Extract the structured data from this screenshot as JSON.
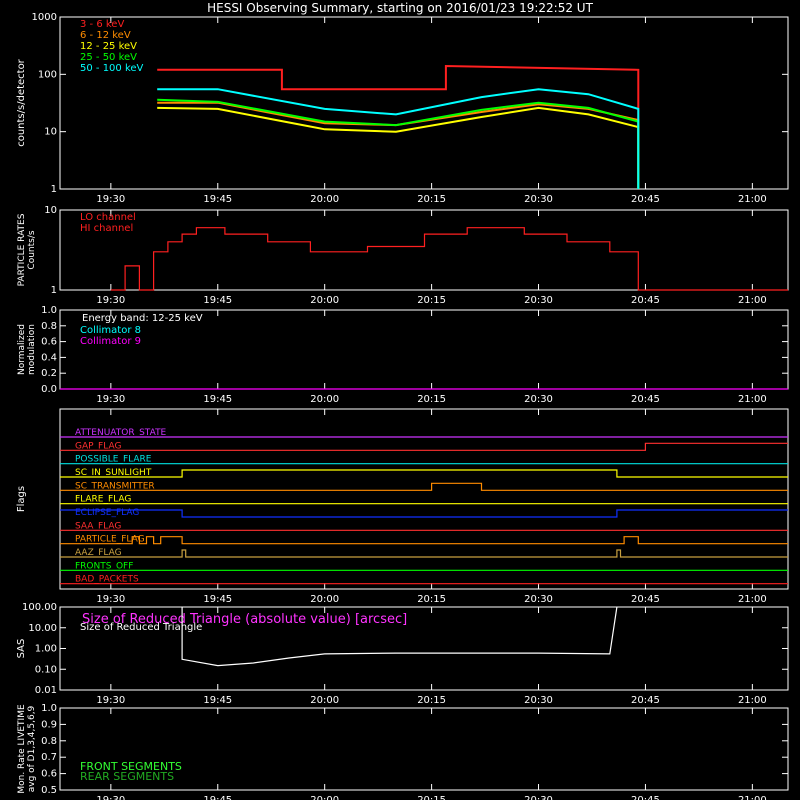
{
  "title": "HESSI Observing Summary, starting on 2016/01/23 19:22:52 UT",
  "time_ticks": [
    "19:30",
    "19:45",
    "20:00",
    "20:15",
    "20:30",
    "20:45",
    "21:00"
  ],
  "chart_data": [
    {
      "type": "line",
      "panel": "count rates",
      "ylabel": "counts/s/detector",
      "yscale": "log",
      "ylim": [
        1,
        1000
      ],
      "yticks": [
        "1",
        "10",
        "100",
        "1000"
      ],
      "xlim": [
        "19:22:52",
        "21:05"
      ],
      "series": [
        {
          "name": "3 - 6 keV",
          "color": "#ff2020",
          "points": [
            [
              "19:36:30",
              120
            ],
            [
              "19:54",
              120
            ],
            [
              "19:54",
              55
            ],
            [
              "20:17",
              55
            ],
            [
              "20:17",
              140
            ],
            [
              "20:44",
              120
            ],
            [
              "20:44",
              1
            ]
          ]
        },
        {
          "name": "6 - 12 keV",
          "color": "#ff8c00",
          "points": [
            [
              "19:36:30",
              32
            ],
            [
              "19:45",
              32
            ],
            [
              "20:00",
              14
            ],
            [
              "20:10",
              13
            ],
            [
              "20:22",
              22
            ],
            [
              "20:30",
              30
            ],
            [
              "20:37",
              25
            ],
            [
              "20:44",
              16
            ],
            [
              "20:44",
              1
            ]
          ]
        },
        {
          "name": "12 - 25 keV",
          "color": "#ffff00",
          "points": [
            [
              "19:36:30",
              26
            ],
            [
              "19:45",
              25
            ],
            [
              "20:00",
              11
            ],
            [
              "20:10",
              10
            ],
            [
              "20:22",
              18
            ],
            [
              "20:30",
              26
            ],
            [
              "20:37",
              20
            ],
            [
              "20:44",
              12
            ],
            [
              "20:44",
              1
            ]
          ]
        },
        {
          "name": "25 - 50 keV",
          "color": "#00ff00",
          "points": [
            [
              "19:36:30",
              36
            ],
            [
              "19:45",
              33
            ],
            [
              "20:00",
              15
            ],
            [
              "20:10",
              13
            ],
            [
              "20:22",
              24
            ],
            [
              "20:30",
              32
            ],
            [
              "20:37",
              26
            ],
            [
              "20:44",
              15
            ],
            [
              "20:44",
              1
            ]
          ]
        },
        {
          "name": "50 - 100 keV",
          "color": "#00ffff",
          "points": [
            [
              "19:36:30",
              55
            ],
            [
              "19:45",
              55
            ],
            [
              "20:00",
              25
            ],
            [
              "20:10",
              20
            ],
            [
              "20:22",
              40
            ],
            [
              "20:30",
              55
            ],
            [
              "20:37",
              45
            ],
            [
              "20:44",
              25
            ],
            [
              "20:44",
              1
            ]
          ]
        }
      ]
    },
    {
      "type": "line",
      "panel": "particle rates",
      "ylabel": "PARTICLE RATES",
      "ylabel2": "Counts/s",
      "yscale": "log",
      "ylim": [
        1,
        10
      ],
      "yticks": [
        "1",
        "10"
      ],
      "series": [
        {
          "name": "LO channel",
          "color": "#ff2020",
          "points": [
            [
              "19:30",
              1
            ],
            [
              "19:32",
              1
            ],
            [
              "19:32",
              2
            ],
            [
              "19:34",
              2
            ],
            [
              "19:34",
              1
            ],
            [
              "19:36",
              1
            ],
            [
              "19:36",
              3
            ],
            [
              "19:38",
              3
            ],
            [
              "19:38",
              4
            ],
            [
              "19:40",
              4
            ],
            [
              "19:40",
              5
            ],
            [
              "19:42",
              5
            ],
            [
              "19:42",
              6
            ],
            [
              "19:46",
              6
            ],
            [
              "19:46",
              5
            ],
            [
              "19:52",
              5
            ],
            [
              "19:52",
              4
            ],
            [
              "19:58",
              4
            ],
            [
              "19:58",
              3
            ],
            [
              "20:06",
              3
            ],
            [
              "20:06",
              3.5
            ],
            [
              "20:14",
              3.5
            ],
            [
              "20:14",
              5
            ],
            [
              "20:20",
              5
            ],
            [
              "20:20",
              6
            ],
            [
              "20:28",
              6
            ],
            [
              "20:28",
              5
            ],
            [
              "20:34",
              5
            ],
            [
              "20:34",
              4
            ],
            [
              "20:40",
              4
            ],
            [
              "20:40",
              3
            ],
            [
              "20:44",
              3
            ],
            [
              "20:44",
              1
            ],
            [
              "21:05",
              1
            ]
          ]
        },
        {
          "name": "HI channel",
          "color": "#ff2020",
          "points": []
        }
      ]
    },
    {
      "type": "line",
      "panel": "modulation",
      "ylabel": "Normalized",
      "ylabel2": "modulation",
      "ylim": [
        0,
        1
      ],
      "yticks": [
        "0.0",
        "0.2",
        "0.4",
        "0.6",
        "0.8",
        "1.0"
      ],
      "annotation": "Energy band: 12-25 keV",
      "series": [
        {
          "name": "Collimator 8",
          "color": "#00ffff",
          "points": []
        },
        {
          "name": "Collimator 9",
          "color": "#ff00ff",
          "points": [
            [
              "19:22:52",
              0
            ],
            [
              "21:05",
              0
            ]
          ]
        }
      ]
    },
    {
      "type": "line",
      "panel": "flags",
      "ylabel": "Flags",
      "series": [
        {
          "name": "ATTENUATOR_STATE",
          "color": "#cc33ff",
          "points": [
            [
              "19:22:52",
              0
            ],
            [
              "21:05",
              0
            ]
          ]
        },
        {
          "name": "GAP_FLAG",
          "color": "#ff3030",
          "points": [
            [
              "19:22:52",
              0
            ],
            [
              "20:45",
              0
            ],
            [
              "20:45",
              1
            ],
            [
              "21:05",
              1
            ]
          ]
        },
        {
          "name": "POSSIBLE_FLARE",
          "color": "#00e0e0",
          "points": [
            [
              "19:22:52",
              0
            ],
            [
              "21:05",
              0
            ]
          ]
        },
        {
          "name": "SC_IN_SUNLIGHT",
          "color": "#ffff00",
          "points": [
            [
              "19:22:52",
              0
            ],
            [
              "19:40",
              0
            ],
            [
              "19:40",
              1
            ],
            [
              "20:41",
              1
            ],
            [
              "20:41",
              0
            ],
            [
              "21:05",
              0
            ]
          ]
        },
        {
          "name": "SC_TRANSMITTER",
          "color": "#ff8c00",
          "points": [
            [
              "19:22:52",
              0
            ],
            [
              "20:15",
              0
            ],
            [
              "20:15",
              1
            ],
            [
              "20:22",
              1
            ],
            [
              "20:22",
              0
            ],
            [
              "21:05",
              0
            ]
          ]
        },
        {
          "name": "FLARE_FLAG",
          "color": "#ffff00",
          "points": [
            [
              "19:22:52",
              0
            ],
            [
              "21:05",
              0
            ]
          ]
        },
        {
          "name": "ECLIPSE_FLAG",
          "color": "#1030ff",
          "points": [
            [
              "19:22:52",
              1
            ],
            [
              "19:40",
              1
            ],
            [
              "19:40",
              0
            ],
            [
              "20:41",
              0
            ],
            [
              "20:41",
              1
            ],
            [
              "21:05",
              1
            ]
          ]
        },
        {
          "name": "SAA_FLAG",
          "color": "#ff3030",
          "points": [
            [
              "19:22:52",
              0
            ],
            [
              "21:05",
              0
            ]
          ]
        },
        {
          "name": "PARTICLE_FLAG",
          "color": "#ff8c00",
          "points": [
            [
              "19:22:52",
              0
            ],
            [
              "19:33",
              0
            ],
            [
              "19:33",
              1
            ],
            [
              "19:34",
              1
            ],
            [
              "19:34",
              0
            ],
            [
              "19:35",
              0
            ],
            [
              "19:35",
              1
            ],
            [
              "19:36",
              1
            ],
            [
              "19:36",
              0
            ],
            [
              "19:37",
              0
            ],
            [
              "19:37",
              1
            ],
            [
              "19:40",
              1
            ],
            [
              "19:40",
              0
            ],
            [
              "20:42",
              0
            ],
            [
              "20:42",
              1
            ],
            [
              "20:44",
              1
            ],
            [
              "20:44",
              0
            ],
            [
              "21:05",
              0
            ]
          ]
        },
        {
          "name": "AAZ_FLAG",
          "color": "#c8a040",
          "points": [
            [
              "19:22:52",
              0
            ],
            [
              "19:40",
              0
            ],
            [
              "19:40",
              1
            ],
            [
              "19:40:30",
              1
            ],
            [
              "19:40:30",
              0
            ],
            [
              "20:41",
              0
            ],
            [
              "20:41",
              1
            ],
            [
              "20:41:30",
              1
            ],
            [
              "20:41:30",
              0
            ],
            [
              "21:05",
              0
            ]
          ]
        },
        {
          "name": "FRONTS_OFF",
          "color": "#00ff00",
          "points": [
            [
              "19:22:52",
              0
            ],
            [
              "21:05",
              0
            ]
          ]
        },
        {
          "name": "BAD_PACKETS",
          "color": "#ff2020",
          "points": [
            [
              "19:22:52",
              0
            ],
            [
              "21:05",
              0
            ]
          ]
        }
      ]
    },
    {
      "type": "line",
      "panel": "SAS",
      "ylabel": "SAS",
      "yscale": "log",
      "ylim": [
        0.01,
        100
      ],
      "yticks": [
        "0.01",
        "0.10",
        "1.00",
        "10.00",
        "100.00"
      ],
      "annotation": "Size of Reduced Triangle (absolute value) [arcsec]",
      "series": [
        {
          "name": "Size of Reduced Triangle",
          "color": "#ffffff",
          "points": [
            [
              "19:40",
              100
            ],
            [
              "19:40",
              0.3
            ],
            [
              "19:45",
              0.15
            ],
            [
              "19:50",
              0.2
            ],
            [
              "19:55",
              0.35
            ],
            [
              "20:00",
              0.55
            ],
            [
              "20:10",
              0.6
            ],
            [
              "20:30",
              0.6
            ],
            [
              "20:40",
              0.55
            ],
            [
              "20:41",
              100
            ]
          ]
        }
      ]
    },
    {
      "type": "line",
      "panel": "livetime",
      "ylabel": "Mon. Rate LIVETIME",
      "ylabel2": "avg of D1,3,4,5,6,9",
      "ylim": [
        0.5,
        1.0
      ],
      "yticks": [
        "0.5",
        "0.6",
        "0.7",
        "0.8",
        "0.9",
        "1.0"
      ],
      "series": [
        {
          "name": "FRONT SEGMENTS",
          "color": "#33ff33",
          "points": []
        },
        {
          "name": "REAR SEGMENTS",
          "color": "#22aa22",
          "points": []
        }
      ]
    }
  ]
}
